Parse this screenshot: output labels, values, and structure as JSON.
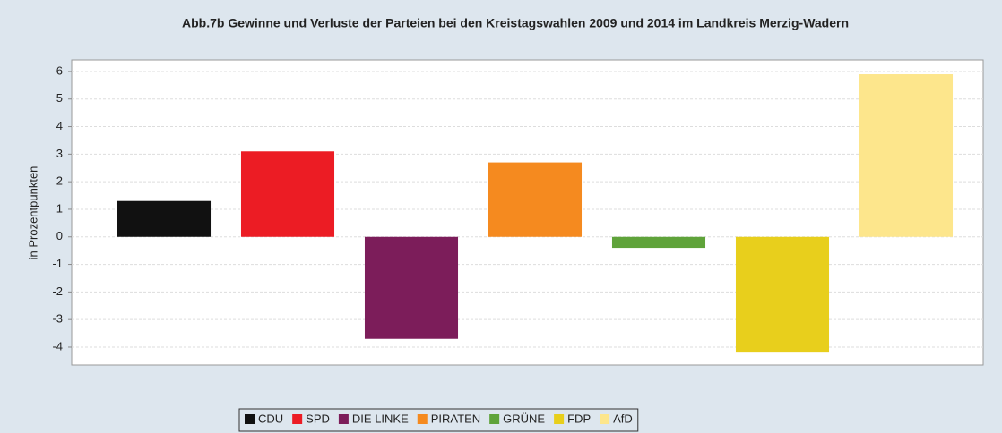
{
  "chart_data": {
    "type": "bar",
    "title": "Abb.7b Gewinne und Verluste  der Parteien bei den Kreistagswahlen 2009 und 2014 im Landkreis Merzig-Wadern",
    "y_label": "in Prozentpunkten",
    "categories": [
      "CDU",
      "SPD",
      "DIE LINKE",
      "PIRATEN",
      "GRÜNE",
      "FDP",
      "AfD"
    ],
    "values": [
      1.3,
      3.1,
      -3.7,
      2.7,
      -0.4,
      -4.2,
      5.9
    ],
    "colors": [
      "#111111",
      "#ec1c24",
      "#7c1d5a",
      "#f58a1f",
      "#5fa33a",
      "#e8cf1c",
      "#fde68c"
    ],
    "ylim": [
      -4.65,
      6.42
    ],
    "yticks": [
      -4,
      -3,
      -2,
      -1,
      0,
      1,
      2,
      3,
      4,
      5,
      6
    ],
    "grid": true,
    "legend": "bottom"
  }
}
